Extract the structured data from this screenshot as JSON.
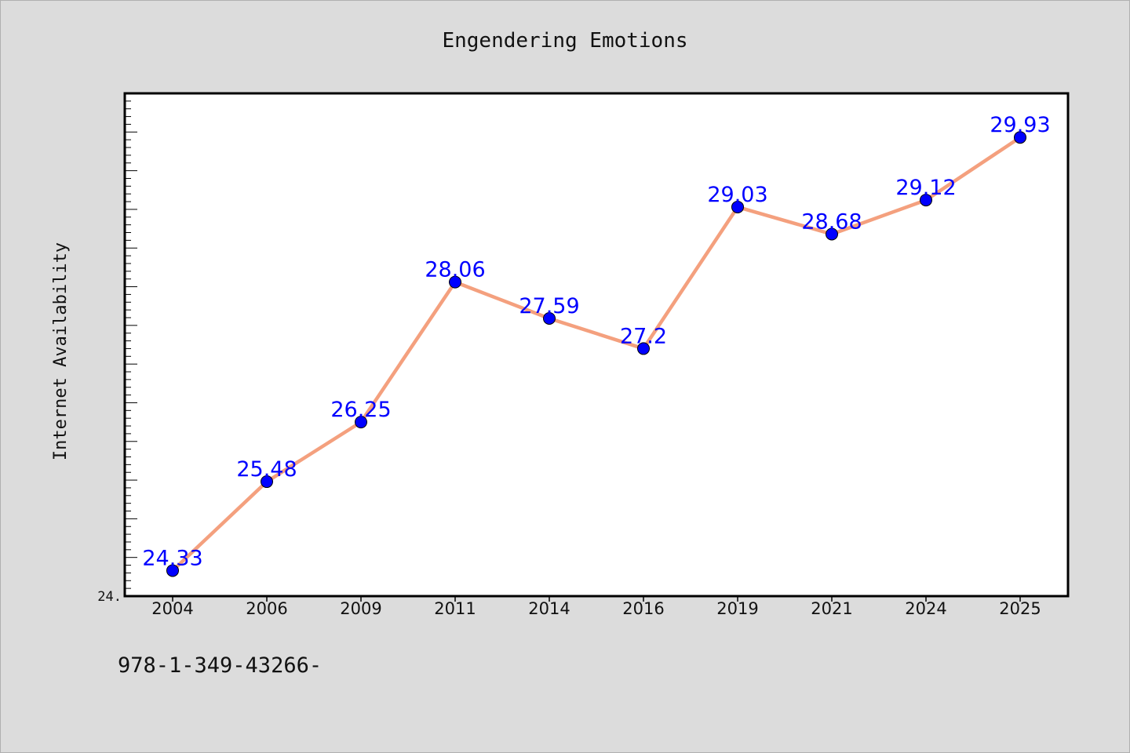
{
  "chart_data": {
    "type": "line",
    "title": "Engendering Emotions",
    "xlabel": "",
    "ylabel": "Internet Availability",
    "categories": [
      "2004",
      "2006",
      "2009",
      "2011",
      "2014",
      "2016",
      "2019",
      "2021",
      "2024",
      "2025"
    ],
    "series": [
      {
        "values": [
          24.33,
          25.48,
          26.25,
          28.06,
          27.59,
          27.2,
          29.03,
          28.68,
          29.12,
          29.93
        ]
      }
    ],
    "data_labels": [
      "24.33",
      "25.48",
      "26.25",
      "28.06",
      "27.59",
      "27.2",
      "29.03",
      "28.68",
      "29.12",
      "29.93"
    ],
    "ylim": [
      24.0,
      30.5
    ],
    "y_tick_label": "24.",
    "grid": false,
    "colors": {
      "line": "#f4a07e",
      "marker": "#0000ff",
      "label": "#0000ff",
      "plot_background": "#ffffff",
      "page_background": "#dcdcdc"
    }
  },
  "footer": {
    "identifier": "978-1-349-43266-"
  }
}
